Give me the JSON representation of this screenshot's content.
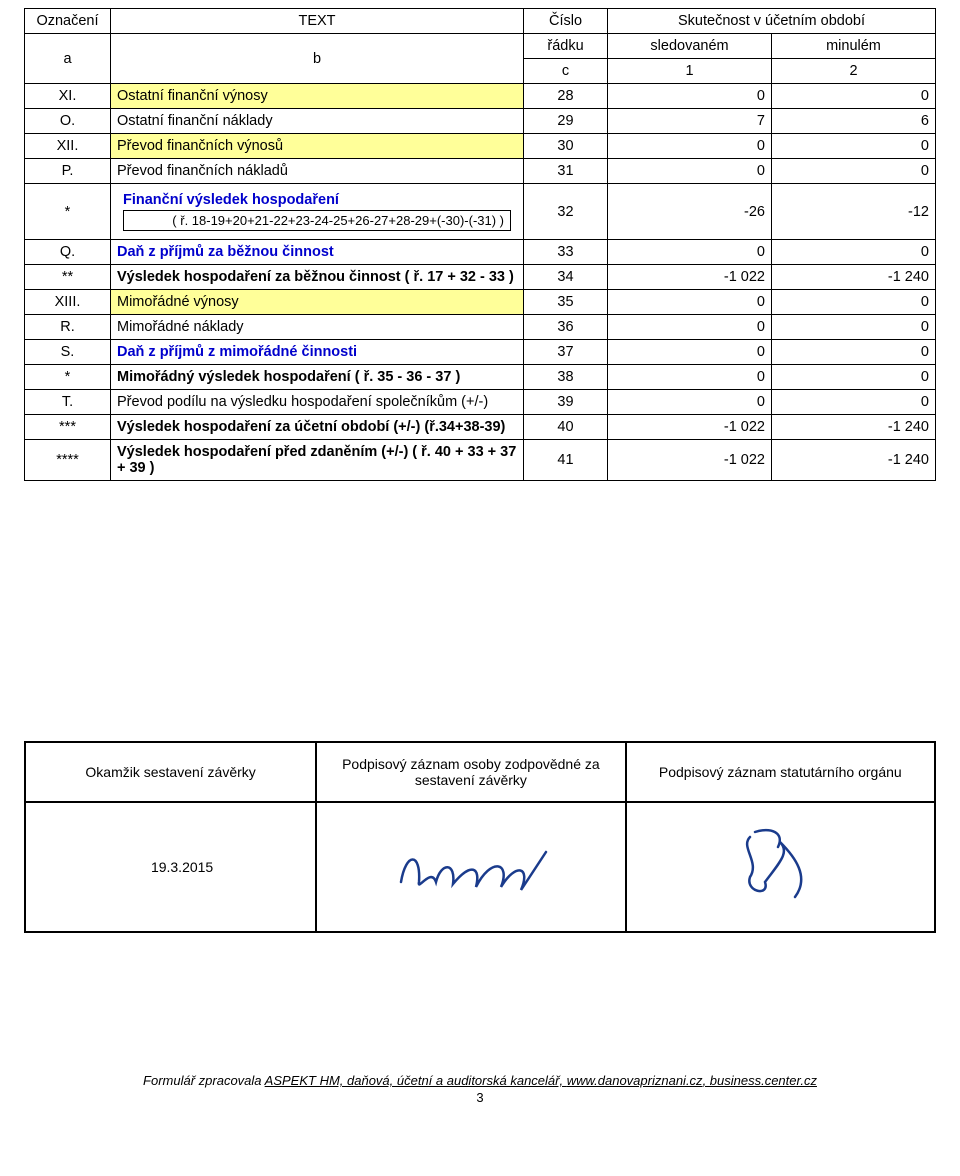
{
  "header": {
    "oznaceni": "Označení",
    "text": "TEXT",
    "cislo": "Číslo",
    "skutecnost": "Skutečnost v účetním období",
    "a": "a",
    "b": "b",
    "radku": "řádku",
    "sledovanem": "sledovaném",
    "minulem": "minulém",
    "c": "c",
    "one": "1",
    "two": "2"
  },
  "rows": [
    {
      "a": "XI.",
      "b": "Ostatní finanční výnosy",
      "c": "28",
      "v1": "0",
      "v2": "0",
      "yellow": true
    },
    {
      "a": "O.",
      "b": "Ostatní finanční náklady",
      "c": "29",
      "v1": "7",
      "v2": "6",
      "yellow": false
    },
    {
      "a": "XII.",
      "b": "Převod finančních výnosů",
      "c": "30",
      "v1": "0",
      "v2": "0",
      "yellow": true
    },
    {
      "a": "P.",
      "b": "Převod finančních nákladů",
      "c": "31",
      "v1": "0",
      "v2": "0",
      "yellow": false
    },
    {
      "a": "*",
      "b": "Finanční výsledek hospodaření",
      "sub": "( ř. 18-19+20+21-22+23-24-25+26-27+28-29+(-30)-(-31) )",
      "c": "32",
      "v1": "-26",
      "v2": "-12",
      "boldblue": true
    },
    {
      "a": "Q.",
      "b": "Daň z příjmů za běžnou činnost",
      "c": "33",
      "v1": "0",
      "v2": "0",
      "boldblue": true
    },
    {
      "a": "**",
      "b": "Výsledek hospodaření za běžnou činnost  ( ř. 17 + 32 - 33 )",
      "c": "34",
      "v1": "-1 022",
      "v2": "-1 240",
      "bold": true
    },
    {
      "a": "XIII.",
      "b": "Mimořádné výnosy",
      "c": "35",
      "v1": "0",
      "v2": "0",
      "yellow": true
    },
    {
      "a": "R.",
      "b": "Mimořádné náklady",
      "c": "36",
      "v1": "0",
      "v2": "0",
      "yellow": false
    },
    {
      "a": "S.",
      "b": "Daň z příjmů z mimořádné činnosti",
      "c": "37",
      "v1": "0",
      "v2": "0",
      "boldblue": true
    },
    {
      "a": "*",
      "b": "Mimořádný výsledek hospodaření  ( ř. 35 - 36 - 37 )",
      "c": "38",
      "v1": "0",
      "v2": "0",
      "bold": true
    },
    {
      "a": "T.",
      "b": "Převod podílu na výsledku hospodaření společníkům (+/-)",
      "c": "39",
      "v1": "0",
      "v2": "0",
      "yellow": false
    },
    {
      "a": "***",
      "b": "Výsledek hospodaření za účetní období (+/-)  (ř.34+38-39)",
      "c": "40",
      "v1": "-1 022",
      "v2": "-1 240",
      "bold": true
    },
    {
      "a": "****",
      "b": "Výsledek hospodaření před zdaněním (+/-) ( ř. 40 + 33 + 37 + 39 )",
      "c": "41",
      "v1": "-1 022",
      "v2": "-1 240",
      "bold": true
    }
  ],
  "sig": {
    "h1": "Okamžik sestavení závěrky",
    "h2": "Podpisový záznam osoby zodpovědné za sestavení závěrky",
    "h3": "Podpisový záznam statutárního orgánu",
    "date": "19.3.2015"
  },
  "footer": {
    "text_pre": "Formulář zpracovala ",
    "text_link1": "ASPEKT HM, daňová, účetní a auditorská kancelář, ",
    "text_link2": "www.danovapriznani.cz",
    "text_link3": ", business.center.cz",
    "page": "3"
  },
  "colors": {
    "yellow": "#ffff99",
    "blue": "#0000cc",
    "border": "#000000"
  }
}
